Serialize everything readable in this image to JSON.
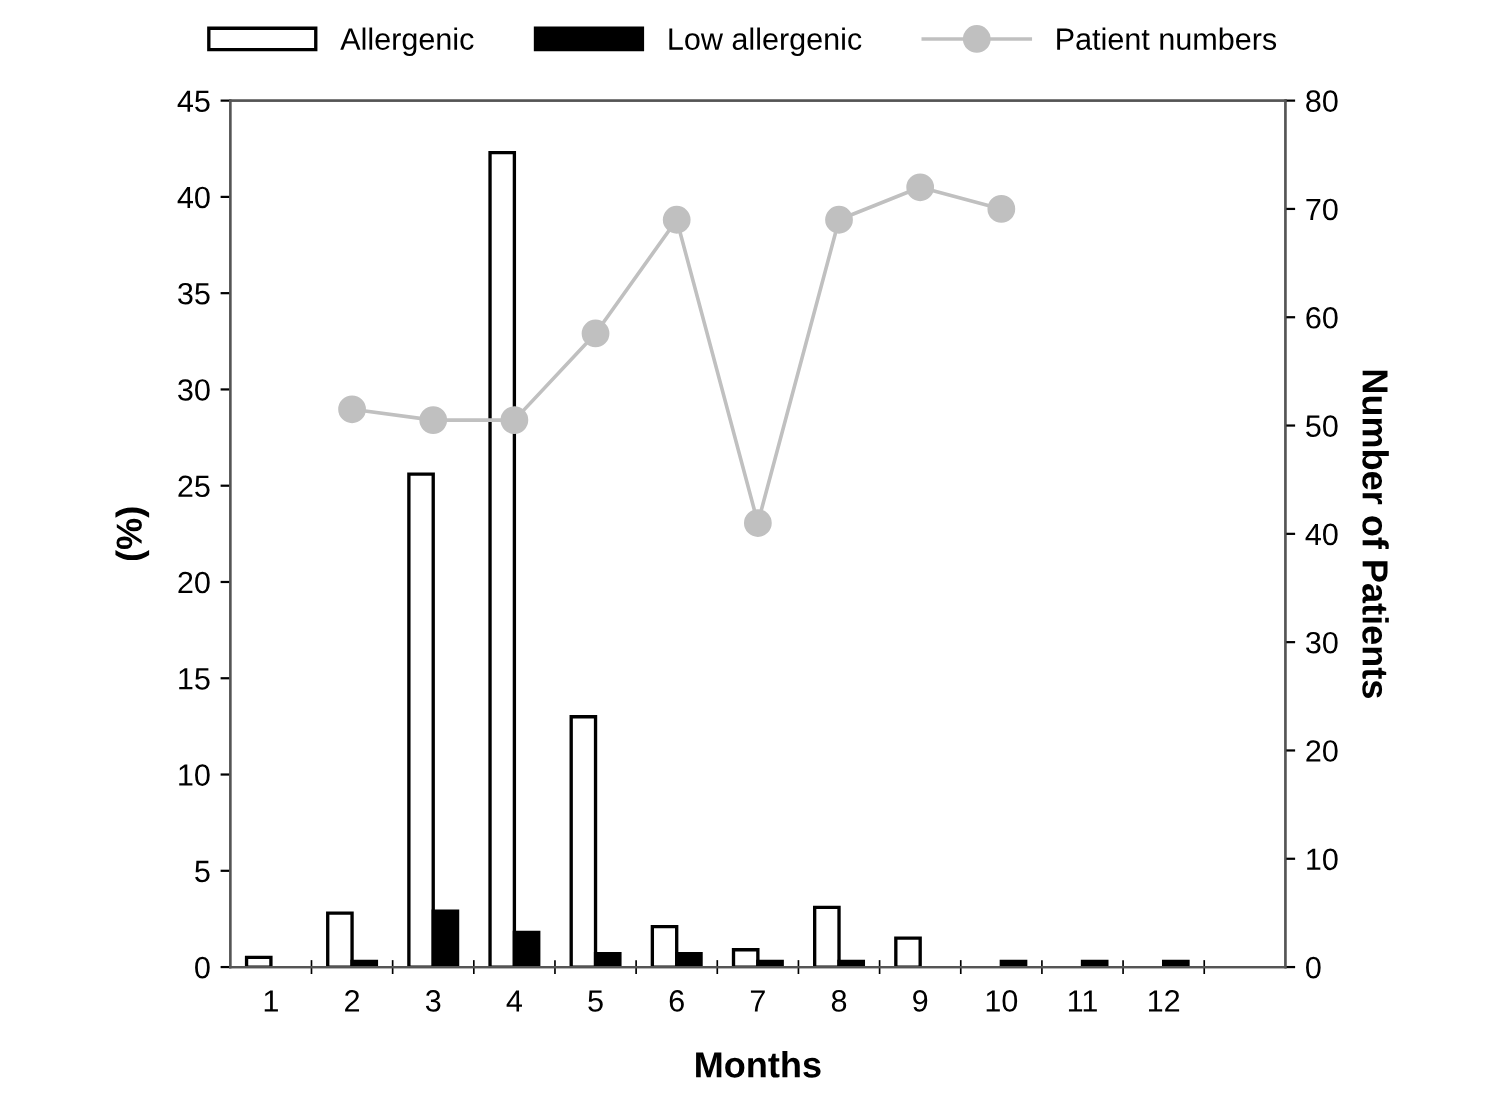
{
  "chart_data": {
    "type": "bar",
    "xlabel": "Months",
    "ylabel": "(%)",
    "y2label": "Number of Patients",
    "categories": [
      "1",
      "2",
      "3",
      "4",
      "5",
      "6",
      "7",
      "8",
      "9",
      "10",
      "11",
      "12",
      null
    ],
    "series": [
      {
        "name": "Allergenic",
        "color": "#ffffff",
        "values": [
          0.5,
          2.8,
          25.6,
          42.3,
          13,
          2.1,
          0.9,
          3.1,
          1.5,
          null,
          null,
          null,
          null
        ]
      },
      {
        "name": "Low allergenic",
        "color": "#000000",
        "values": [
          null,
          0.3,
          2.9,
          1.8,
          0.7,
          0.7,
          0.3,
          0.3,
          null,
          0.3,
          0.3,
          0.3,
          null
        ]
      },
      {
        "name": "Patient numbers",
        "type": "line",
        "axis": "y2",
        "color": "#c0c0c0",
        "marker": "circle",
        "values": [
          null,
          51.5,
          50.5,
          50.5,
          58.5,
          69,
          41,
          69,
          72,
          70,
          null,
          null,
          null
        ]
      }
    ],
    "ylim": [
      0,
      45
    ],
    "yticks": [
      0,
      5,
      10,
      15,
      20,
      25,
      30,
      35,
      40,
      45
    ],
    "y2lim": [
      0,
      80
    ],
    "y2ticks": [
      0,
      10,
      20,
      30,
      40,
      50,
      60,
      70,
      80
    ],
    "legend": "top",
    "grid": false
  }
}
